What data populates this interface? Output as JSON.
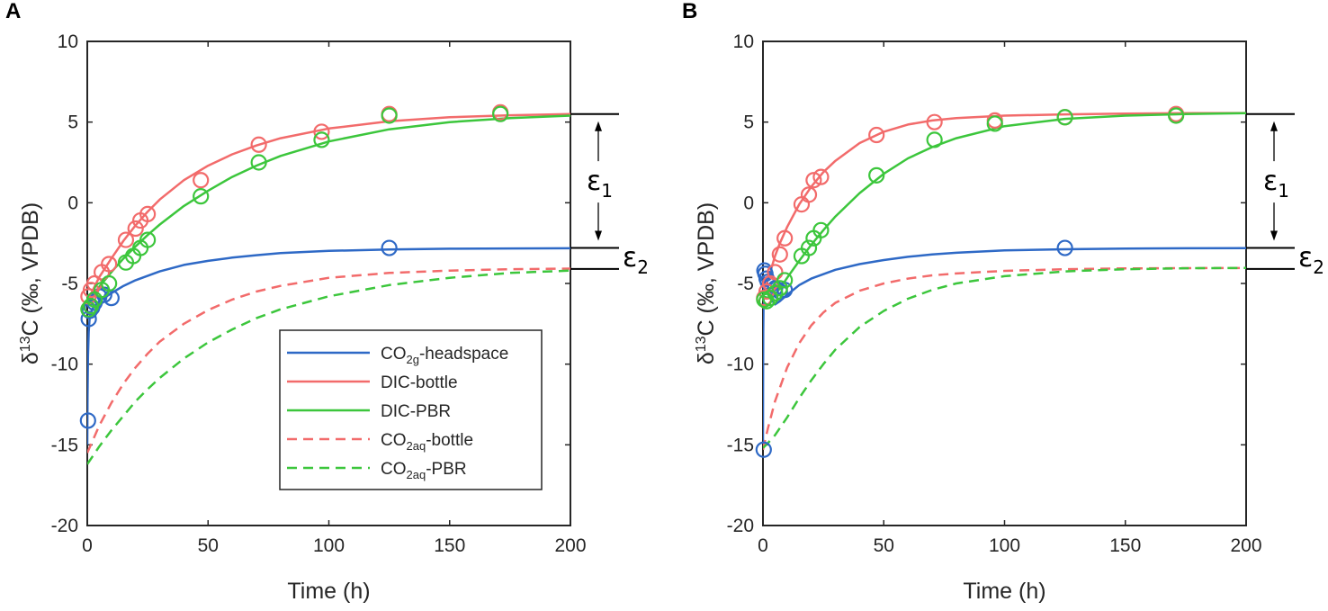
{
  "colors": {
    "blue": "#2e69c6",
    "red": "#f26b6b",
    "green": "#3cc63c",
    "axis": "#262626"
  },
  "chart_data": [
    {
      "panel": "A",
      "type": "line",
      "xlabel": "Time (h)",
      "ylabel": "δ13C (‰, VPDB)",
      "xlim": [
        0,
        200
      ],
      "ylim": [
        -20,
        10
      ],
      "xticks": [
        0,
        50,
        100,
        150,
        200
      ],
      "yticks": [
        -20,
        -15,
        -10,
        -5,
        0,
        5,
        10
      ],
      "annotations": {
        "eps1": "ε1",
        "eps2": "ε2",
        "eps1_range": [
          -2.8,
          5.5
        ],
        "eps2_range": [
          -4.1,
          -2.8
        ]
      },
      "legend": [
        {
          "key": "co2g",
          "text_main": "CO",
          "text_sub": "2g",
          "text_rest": "-headspace",
          "style": "solid",
          "color": "#2e69c6"
        },
        {
          "key": "dicb",
          "text_main": "DIC-bottle",
          "text_sub": "",
          "text_rest": "",
          "style": "solid",
          "color": "#f26b6b"
        },
        {
          "key": "dicp",
          "text_main": "DIC-PBR",
          "text_sub": "",
          "text_rest": "",
          "style": "solid",
          "color": "#3cc63c"
        },
        {
          "key": "co2ab",
          "text_main": "CO",
          "text_sub": "2aq",
          "text_rest": "-bottle",
          "style": "dashed",
          "color": "#f26b6b"
        },
        {
          "key": "co2ap",
          "text_main": "CO",
          "text_sub": "2aq",
          "text_rest": "-PBR",
          "style": "dashed",
          "color": "#3cc63c"
        }
      ],
      "lines": [
        {
          "name": "CO2g-headspace",
          "style": "solid",
          "color": "#2e69c6",
          "x": [
            0,
            0.1,
            0.3,
            0.6,
            1,
            2,
            3,
            5,
            7,
            10,
            15,
            20,
            30,
            40,
            50,
            60,
            70,
            80,
            100,
            125,
            150,
            175,
            200
          ],
          "y": [
            -15,
            -12,
            -9.5,
            -8,
            -7.1,
            -6.6,
            -6.4,
            -6.1,
            -5.9,
            -5.6,
            -5.15,
            -4.8,
            -4.25,
            -3.85,
            -3.6,
            -3.4,
            -3.25,
            -3.12,
            -2.98,
            -2.9,
            -2.85,
            -2.83,
            -2.82
          ]
        },
        {
          "name": "DIC-bottle",
          "style": "solid",
          "color": "#f26b6b",
          "x": [
            0,
            1,
            2,
            5,
            10,
            15,
            20,
            25,
            30,
            40,
            50,
            60,
            70,
            80,
            100,
            125,
            150,
            175,
            200
          ],
          "y": [
            -6.0,
            -5.8,
            -5.5,
            -4.6,
            -3.45,
            -2.35,
            -1.4,
            -0.55,
            0.2,
            1.4,
            2.3,
            3.0,
            3.55,
            4.0,
            4.6,
            5.05,
            5.3,
            5.42,
            5.5
          ]
        },
        {
          "name": "DIC-PBR",
          "style": "solid",
          "color": "#3cc63c",
          "x": [
            0,
            1,
            2,
            5,
            10,
            15,
            20,
            25,
            30,
            40,
            50,
            60,
            70,
            80,
            100,
            125,
            150,
            175,
            200
          ],
          "y": [
            -6.3,
            -6.1,
            -5.9,
            -5.2,
            -4.3,
            -3.45,
            -2.7,
            -2.0,
            -1.35,
            -0.2,
            0.75,
            1.6,
            2.3,
            2.9,
            3.8,
            4.55,
            5.0,
            5.25,
            5.4
          ]
        },
        {
          "name": "CO2aq-bottle",
          "style": "dashed",
          "color": "#f26b6b",
          "x": [
            0,
            5,
            10,
            15,
            20,
            25,
            30,
            40,
            50,
            60,
            70,
            80,
            100,
            125,
            150,
            175,
            200
          ],
          "y": [
            -15.5,
            -13.8,
            -12.4,
            -11.2,
            -10.2,
            -9.35,
            -8.6,
            -7.5,
            -6.65,
            -6.0,
            -5.5,
            -5.15,
            -4.65,
            -4.35,
            -4.2,
            -4.12,
            -4.08
          ]
        },
        {
          "name": "CO2aq-PBR",
          "style": "dashed",
          "color": "#3cc63c",
          "x": [
            0,
            5,
            10,
            15,
            20,
            25,
            30,
            40,
            50,
            60,
            70,
            80,
            100,
            125,
            150,
            175,
            200
          ],
          "y": [
            -16.2,
            -15.1,
            -14.1,
            -13.2,
            -12.3,
            -11.55,
            -10.85,
            -9.65,
            -8.65,
            -7.85,
            -7.15,
            -6.6,
            -5.8,
            -5.1,
            -4.65,
            -4.35,
            -4.2
          ]
        }
      ],
      "points": [
        {
          "name": "CO2g-headspace",
          "color": "#2e69c6",
          "x": [
            0.3,
            0.6,
            1,
            2,
            3,
            5,
            7,
            10,
            125
          ],
          "y": [
            -13.5,
            -7.2,
            -6.7,
            -6.5,
            -6.2,
            -5.8,
            -5.7,
            -5.9,
            -2.8
          ]
        },
        {
          "name": "DIC-bottle",
          "color": "#f26b6b",
          "x": [
            0.5,
            1.5,
            3,
            6,
            9,
            16,
            20,
            22,
            25,
            47,
            71,
            97,
            125,
            171
          ],
          "y": [
            -5.8,
            -5.4,
            -5.0,
            -4.3,
            -3.8,
            -2.3,
            -1.6,
            -1.1,
            -0.7,
            1.4,
            3.6,
            4.4,
            5.5,
            5.6
          ]
        },
        {
          "name": "DIC-PBR",
          "color": "#3cc63c",
          "x": [
            0.5,
            1.5,
            3,
            6,
            9,
            16,
            19,
            22,
            25,
            47,
            71,
            97,
            125,
            171
          ],
          "y": [
            -6.6,
            -6.4,
            -6.0,
            -5.4,
            -5.0,
            -3.7,
            -3.3,
            -2.8,
            -2.3,
            0.4,
            2.5,
            3.9,
            5.4,
            5.5
          ]
        }
      ]
    },
    {
      "panel": "B",
      "type": "line",
      "xlabel": "Time (h)",
      "ylabel": "δ13C (‰, VPDB)",
      "xlim": [
        0,
        200
      ],
      "ylim": [
        -20,
        10
      ],
      "xticks": [
        0,
        50,
        100,
        150,
        200
      ],
      "yticks": [
        -20,
        -15,
        -10,
        -5,
        0,
        5,
        10
      ],
      "annotations": {
        "eps1": "ε1",
        "eps2": "ε2",
        "eps1_range": [
          -2.8,
          5.5
        ],
        "eps2_range": [
          -4.1,
          -2.8
        ]
      },
      "lines": [
        {
          "name": "CO2g-headspace",
          "style": "solid",
          "color": "#2e69c6",
          "x": [
            0,
            0.05,
            0.1,
            0.3,
            0.6,
            1,
            2,
            3,
            4,
            5,
            7,
            10,
            15,
            20,
            30,
            40,
            50,
            60,
            70,
            80,
            100,
            125,
            150,
            175,
            200
          ],
          "y": [
            -15.3,
            -12,
            -8,
            -5.5,
            -4.9,
            -4.8,
            -5.2,
            -5.7,
            -6.1,
            -6.3,
            -6.1,
            -5.7,
            -5.1,
            -4.7,
            -4.15,
            -3.8,
            -3.55,
            -3.35,
            -3.2,
            -3.1,
            -2.95,
            -2.88,
            -2.84,
            -2.82,
            -2.81
          ]
        },
        {
          "name": "DIC-bottle",
          "style": "solid",
          "color": "#f26b6b",
          "x": [
            0,
            1,
            2,
            3,
            5,
            7,
            10,
            15,
            20,
            25,
            30,
            40,
            50,
            60,
            70,
            80,
            100,
            125,
            150,
            175,
            200
          ],
          "y": [
            -5.5,
            -5.2,
            -4.8,
            -4.3,
            -3.3,
            -2.5,
            -1.5,
            -0.1,
            1.0,
            1.9,
            2.6,
            3.7,
            4.4,
            4.85,
            5.1,
            5.25,
            5.4,
            5.48,
            5.52,
            5.55,
            5.56
          ]
        },
        {
          "name": "DIC-PBR",
          "style": "solid",
          "color": "#3cc63c",
          "x": [
            0,
            1,
            2,
            4,
            6,
            8,
            10,
            15,
            20,
            25,
            30,
            40,
            50,
            60,
            70,
            80,
            100,
            125,
            150,
            175,
            200
          ],
          "y": [
            -5.8,
            -5.85,
            -5.9,
            -5.8,
            -5.5,
            -5.1,
            -4.65,
            -3.6,
            -2.6,
            -1.7,
            -0.85,
            0.6,
            1.8,
            2.75,
            3.45,
            4.0,
            4.75,
            5.2,
            5.4,
            5.5,
            5.55
          ]
        },
        {
          "name": "CO2aq-bottle",
          "style": "dashed",
          "color": "#f26b6b",
          "x": [
            0,
            2,
            5,
            10,
            15,
            20,
            25,
            30,
            40,
            50,
            60,
            70,
            80,
            100,
            125,
            150,
            175,
            200
          ],
          "y": [
            -15.3,
            -14.0,
            -12.3,
            -10.2,
            -8.7,
            -7.6,
            -6.8,
            -6.2,
            -5.45,
            -5.0,
            -4.7,
            -4.5,
            -4.38,
            -4.22,
            -4.12,
            -4.07,
            -4.05,
            -4.04
          ]
        },
        {
          "name": "CO2aq-PBR",
          "style": "dashed",
          "color": "#3cc63c",
          "x": [
            0,
            2,
            5,
            10,
            15,
            20,
            25,
            30,
            40,
            50,
            60,
            70,
            80,
            100,
            125,
            150,
            175,
            200
          ],
          "y": [
            -15.2,
            -14.9,
            -14.4,
            -13.3,
            -12.1,
            -11.0,
            -10.0,
            -9.1,
            -7.7,
            -6.7,
            -5.95,
            -5.4,
            -5.0,
            -4.55,
            -4.25,
            -4.12,
            -4.06,
            -4.04
          ]
        }
      ],
      "points": [
        {
          "name": "CO2g-headspace",
          "color": "#2e69c6",
          "x": [
            0.3,
            0.6,
            1,
            1.5,
            2,
            3,
            5,
            7,
            9,
            125
          ],
          "y": [
            -15.3,
            -4.2,
            -4.4,
            -4.7,
            -4.9,
            -5.1,
            -5.3,
            -5.5,
            -5.4,
            -2.8
          ]
        },
        {
          "name": "DIC-bottle",
          "color": "#f26b6b",
          "x": [
            0.5,
            1.5,
            3,
            5,
            7,
            9,
            16,
            19,
            21,
            24,
            47,
            71,
            96,
            125,
            171
          ],
          "y": [
            -5.9,
            -5.5,
            -5.0,
            -4.3,
            -3.2,
            -2.2,
            -0.1,
            0.5,
            1.4,
            1.6,
            4.2,
            5.0,
            5.1,
            5.3,
            5.5
          ]
        },
        {
          "name": "DIC-PBR",
          "color": "#3cc63c",
          "x": [
            0.5,
            1.5,
            3,
            5,
            7,
            9,
            16,
            19,
            21,
            24,
            47,
            71,
            96,
            125,
            171
          ],
          "y": [
            -6.0,
            -6.1,
            -5.9,
            -5.6,
            -5.3,
            -4.8,
            -3.3,
            -2.8,
            -2.2,
            -1.7,
            1.7,
            3.9,
            4.9,
            5.3,
            5.4
          ]
        }
      ]
    }
  ]
}
